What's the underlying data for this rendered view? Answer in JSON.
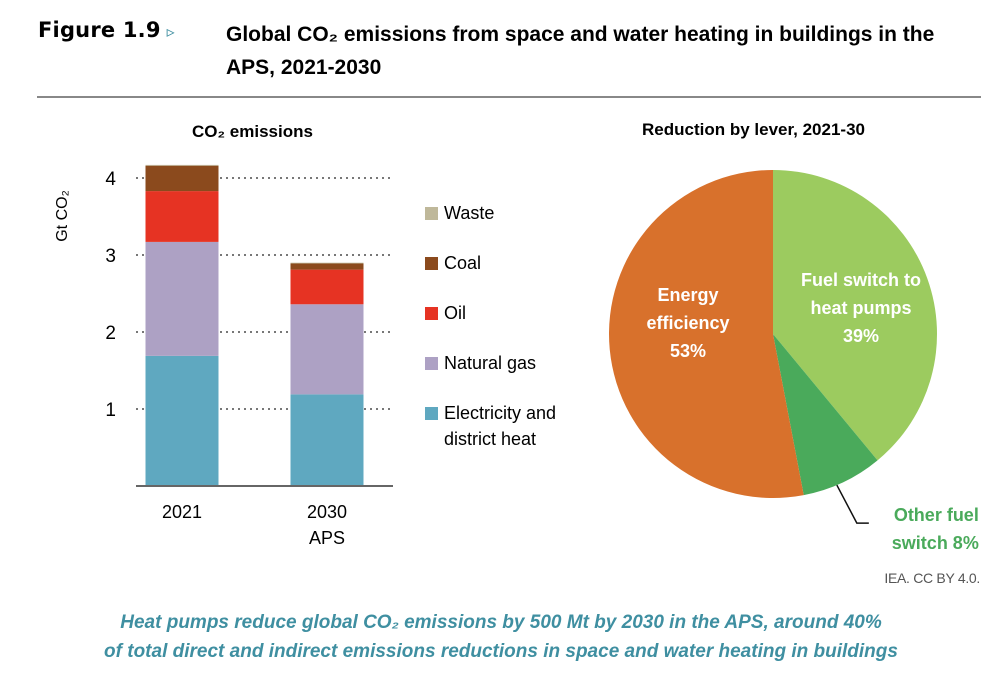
{
  "figure": {
    "label": "Figure 1.9",
    "arrow_icon": "▹",
    "title": "Global CO₂ emissions from space and water heating in buildings in the APS, 2021-2030"
  },
  "credit": "IEA. CC BY 4.0.",
  "caption": {
    "line1": "Heat pumps reduce global CO₂ emissions by 500 Mt by 2030 in the APS, around 40%",
    "line2": "of total direct and indirect emissions reductions in space and water heating in buildings"
  },
  "chart_data": [
    {
      "type": "bar",
      "stacked": true,
      "title": "CO₂ emissions",
      "ylabel": "Gt CO₂",
      "xlabel": "",
      "ylim": [
        0,
        4.3
      ],
      "yticks": [
        1,
        2,
        3,
        4
      ],
      "grid": true,
      "categories": [
        [
          "2021"
        ],
        [
          "2030",
          "APS"
        ]
      ],
      "series": [
        {
          "name": "Electricity and district heat",
          "legend_lines": [
            "Electricity and",
            "district heat"
          ],
          "color": "#5fa8c0",
          "values": [
            1.69,
            1.19
          ]
        },
        {
          "name": "Natural gas",
          "legend_lines": [
            "Natural gas"
          ],
          "color": "#ada1c4",
          "values": [
            1.48,
            1.17
          ]
        },
        {
          "name": "Oil",
          "legend_lines": [
            "Oil"
          ],
          "color": "#e63323",
          "values": [
            0.66,
            0.45
          ]
        },
        {
          "name": "Coal",
          "legend_lines": [
            "Coal"
          ],
          "color": "#8b4a1d",
          "values": [
            0.33,
            0.08
          ]
        },
        {
          "name": "Waste",
          "legend_lines": [
            "Waste"
          ],
          "color": "#bfb89a",
          "values": [
            0.01,
            0.01
          ]
        }
      ],
      "legend_order": [
        "Waste",
        "Coal",
        "Oil",
        "Natural gas",
        "Electricity and district heat"
      ],
      "legend": "right"
    },
    {
      "type": "pie",
      "title": "Reduction by lever, 2021-30",
      "slices": [
        {
          "name": "Fuel switch to heat pumps",
          "label_lines": [
            "Fuel switch to",
            "heat pumps",
            "39%"
          ],
          "value": 39,
          "color": "#9ccb5f",
          "label_color": "#ffffff"
        },
        {
          "name": "Other fuel switch",
          "label_lines": [
            "Other fuel",
            "switch 8%"
          ],
          "value": 8,
          "color": "#4aaa5b",
          "label_color": "#4aaa5b",
          "external": true
        },
        {
          "name": "Energy efficiency",
          "label_lines": [
            "Energy",
            "efficiency",
            "53%"
          ],
          "value": 53,
          "color": "#d8712c",
          "label_color": "#ffffff"
        }
      ],
      "start": "top",
      "direction": "clockwise"
    }
  ]
}
